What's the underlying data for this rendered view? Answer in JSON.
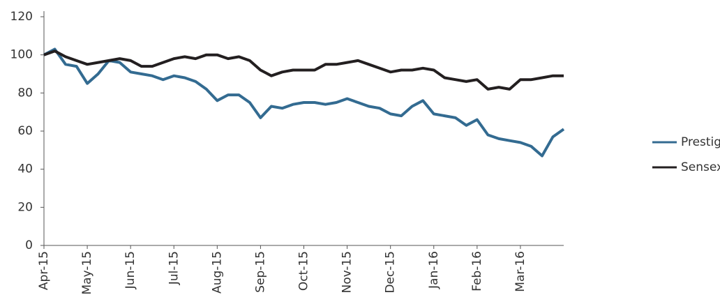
{
  "chart_data": {
    "type": "line",
    "categories": [
      "Apr-15",
      null,
      null,
      null,
      "May-15",
      null,
      null,
      null,
      "Jun-15",
      null,
      null,
      null,
      "Jul-15",
      null,
      null,
      null,
      "Aug-15",
      null,
      null,
      null,
      "Sep-15",
      null,
      null,
      null,
      "Oct-15",
      null,
      null,
      null,
      "Nov-15",
      null,
      null,
      null,
      "Dec-15",
      null,
      null,
      null,
      "Jan-16",
      null,
      null,
      null,
      "Feb-16",
      null,
      null,
      null,
      "Mar-16",
      null,
      null,
      null,
      null
    ],
    "series": [
      {
        "name": "Prestige",
        "color": "#336b91",
        "values": [
          100,
          103,
          95,
          94,
          85,
          90,
          97,
          96,
          91,
          90,
          89,
          87,
          89,
          88,
          86,
          82,
          76,
          79,
          79,
          75,
          67,
          73,
          72,
          74,
          75,
          75,
          74,
          75,
          77,
          75,
          73,
          72,
          69,
          68,
          73,
          76,
          69,
          68,
          67,
          63,
          66,
          58,
          56,
          55,
          54,
          52,
          47,
          57,
          61
        ]
      },
      {
        "name": "Sensex",
        "color": "#231f20",
        "values": [
          100,
          102,
          99,
          97,
          95,
          96,
          97,
          98,
          97,
          94,
          94,
          96,
          98,
          99,
          98,
          100,
          100,
          98,
          99,
          97,
          92,
          89,
          91,
          92,
          92,
          92,
          95,
          95,
          96,
          97,
          95,
          93,
          91,
          92,
          92,
          93,
          92,
          88,
          87,
          86,
          87,
          82,
          83,
          82,
          87,
          87,
          88,
          89,
          89
        ]
      }
    ],
    "ylim": [
      0,
      120
    ],
    "yticks": [
      0,
      20,
      40,
      60,
      80,
      100,
      120
    ],
    "legend": "right"
  }
}
